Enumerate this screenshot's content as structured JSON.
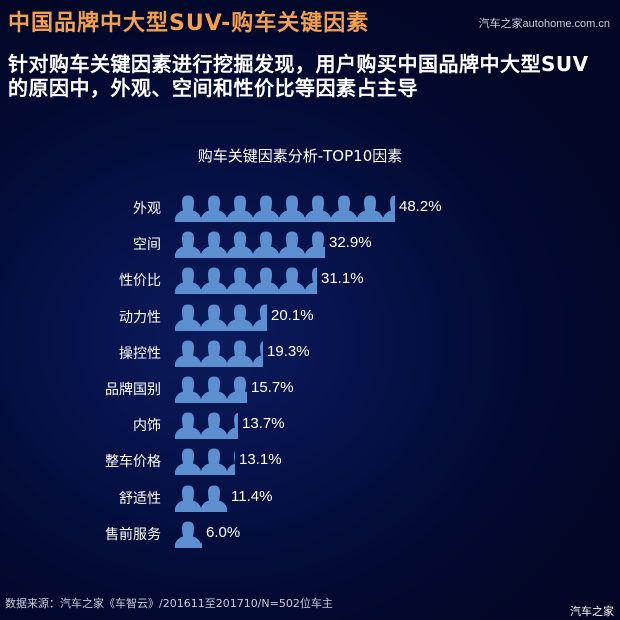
{
  "header": {
    "title": "中国品牌中大型SUV-购车关键因素",
    "watermark": "汽车之家autohome.com.cn"
  },
  "subtitle": "针对购车关键因素进行挖掘发现，用户购买中国品牌中大型SUV的原因中，外观、空间和性价比等因素占主导",
  "footer": {
    "source": "数据来源：汽车之家《车智云》/201611至201710/N=502位车主",
    "watermark": "汽车之家"
  },
  "colors": {
    "title": "#f5a04a",
    "bar": "#5b8fd0",
    "background": "#040c3a"
  },
  "chart_data": {
    "type": "bar",
    "orientation": "horizontal",
    "title": "购车关键因素分析-TOP10因素",
    "xlabel": "",
    "ylabel": "",
    "bar_style": "pictogram-person-icons",
    "categories": [
      "外观",
      "空间",
      "性价比",
      "动力性",
      "操控性",
      "品牌国别",
      "内饰",
      "整车价格",
      "舒适性",
      "售前服务"
    ],
    "values": [
      48.2,
      32.9,
      31.1,
      20.1,
      19.3,
      15.7,
      13.7,
      13.1,
      11.4,
      6.0
    ],
    "value_labels": [
      "48.2%",
      "32.9%",
      "31.1%",
      "20.1%",
      "19.3%",
      "15.7%",
      "13.7%",
      "13.1%",
      "11.4%",
      "6.0%"
    ],
    "unit": "%",
    "grid": false,
    "legend": null
  }
}
